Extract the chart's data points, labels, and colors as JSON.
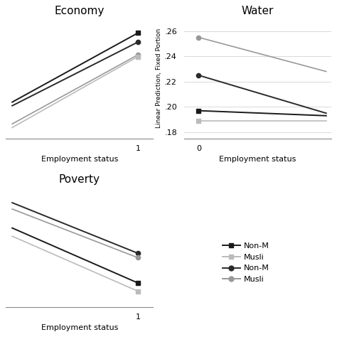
{
  "economy": {
    "title": "Economy",
    "xlabel": "Employment status",
    "lines": [
      {
        "x": [
          0,
          1
        ],
        "y": [
          0.08,
          0.27
        ],
        "color": "#1a1a1a",
        "marker": "s",
        "lw": 1.4,
        "ms_left": false,
        "ms_right": true
      },
      {
        "x": [
          0,
          1
        ],
        "y": [
          0.07,
          0.245
        ],
        "color": "#2a2a2a",
        "marker": "o",
        "lw": 1.4,
        "ms_left": false,
        "ms_right": true
      },
      {
        "x": [
          0,
          1
        ],
        "y": [
          0.02,
          0.21
        ],
        "color": "#999999",
        "marker": "o",
        "lw": 1.2,
        "ms_left": false,
        "ms_right": true
      },
      {
        "x": [
          0,
          1
        ],
        "y": [
          0.01,
          0.205
        ],
        "color": "#bbbbbb",
        "marker": "s",
        "lw": 1.2,
        "ms_left": false,
        "ms_right": true
      }
    ],
    "xticks": [
      1
    ],
    "xlim": [
      -0.05,
      1.12
    ],
    "ylim": [
      -0.02,
      0.31
    ],
    "yticks": [],
    "yticklabels": []
  },
  "water": {
    "title": "Water",
    "xlabel": "Employment status",
    "ylabel": "Linear Prediction, Fixed Portion",
    "lines": [
      {
        "x": [
          0,
          1.3
        ],
        "y": [
          0.197,
          0.193
        ],
        "color": "#1a1a1a",
        "marker": "s",
        "lw": 1.4,
        "ms_left": true,
        "ms_right": false
      },
      {
        "x": [
          0,
          1.3
        ],
        "y": [
          0.225,
          0.195
        ],
        "color": "#2a2a2a",
        "marker": "o",
        "lw": 1.4,
        "ms_left": true,
        "ms_right": false
      },
      {
        "x": [
          0,
          1.3
        ],
        "y": [
          0.189,
          0.189
        ],
        "color": "#bbbbbb",
        "marker": "s",
        "lw": 1.2,
        "ms_left": true,
        "ms_right": false
      },
      {
        "x": [
          0,
          1.3
        ],
        "y": [
          0.255,
          0.228
        ],
        "color": "#999999",
        "marker": "o",
        "lw": 1.2,
        "ms_left": true,
        "ms_right": false
      }
    ],
    "xticks": [
      0
    ],
    "xlim": [
      -0.15,
      1.35
    ],
    "ylim": [
      0.175,
      0.27
    ],
    "yticks": [
      0.18,
      0.2,
      0.22,
      0.24,
      0.26
    ],
    "yticklabels": [
      ".18",
      ".20",
      ".22",
      ".24",
      ".26"
    ]
  },
  "poverty": {
    "title": "Poverty",
    "xlabel": "Employment status",
    "lines": [
      {
        "x": [
          0,
          1
        ],
        "y": [
          0.295,
          0.215
        ],
        "color": "#2a2a2a",
        "marker": "o",
        "lw": 1.4,
        "ms_left": false,
        "ms_right": true
      },
      {
        "x": [
          0,
          1
        ],
        "y": [
          0.285,
          0.208
        ],
        "color": "#999999",
        "marker": "o",
        "lw": 1.2,
        "ms_left": false,
        "ms_right": true
      },
      {
        "x": [
          0,
          1
        ],
        "y": [
          0.255,
          0.168
        ],
        "color": "#1a1a1a",
        "marker": "s",
        "lw": 1.4,
        "ms_left": false,
        "ms_right": true
      },
      {
        "x": [
          0,
          1
        ],
        "y": [
          0.242,
          0.155
        ],
        "color": "#bbbbbb",
        "marker": "s",
        "lw": 1.2,
        "ms_left": false,
        "ms_right": true
      }
    ],
    "xticks": [
      1
    ],
    "xlim": [
      -0.05,
      1.12
    ],
    "ylim": [
      0.13,
      0.32
    ],
    "yticks": [],
    "yticklabels": []
  },
  "legend_entries": [
    {
      "label": "Non-M",
      "color": "#1a1a1a",
      "marker": "s"
    },
    {
      "label": "Musli",
      "color": "#bbbbbb",
      "marker": "s"
    },
    {
      "label": "Non-M",
      "color": "#2a2a2a",
      "marker": "o"
    },
    {
      "label": "Musli",
      "color": "#999999",
      "marker": "o"
    }
  ],
  "background_color": "#ffffff",
  "grid_color": "#d8d8d8"
}
